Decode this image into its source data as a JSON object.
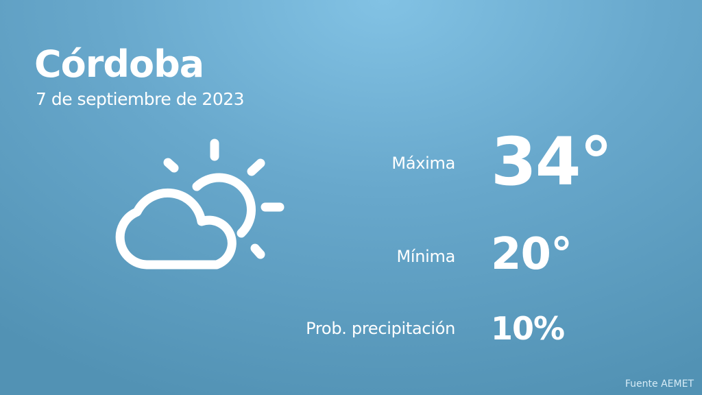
{
  "city": "Córdoba",
  "date": "7 de septiembre de 2023",
  "icon": "partly-cloudy-icon",
  "stats": [
    {
      "label": "Máxima",
      "value": "34°"
    },
    {
      "label": "Mínima",
      "value": "20°"
    },
    {
      "label": "Prob. precipitación",
      "value": "10%"
    }
  ],
  "source": "Fuente AEMET",
  "colors": {
    "background_top": "#82c2e4",
    "background_bottom": "#5292b4",
    "text": "#ffffff"
  }
}
